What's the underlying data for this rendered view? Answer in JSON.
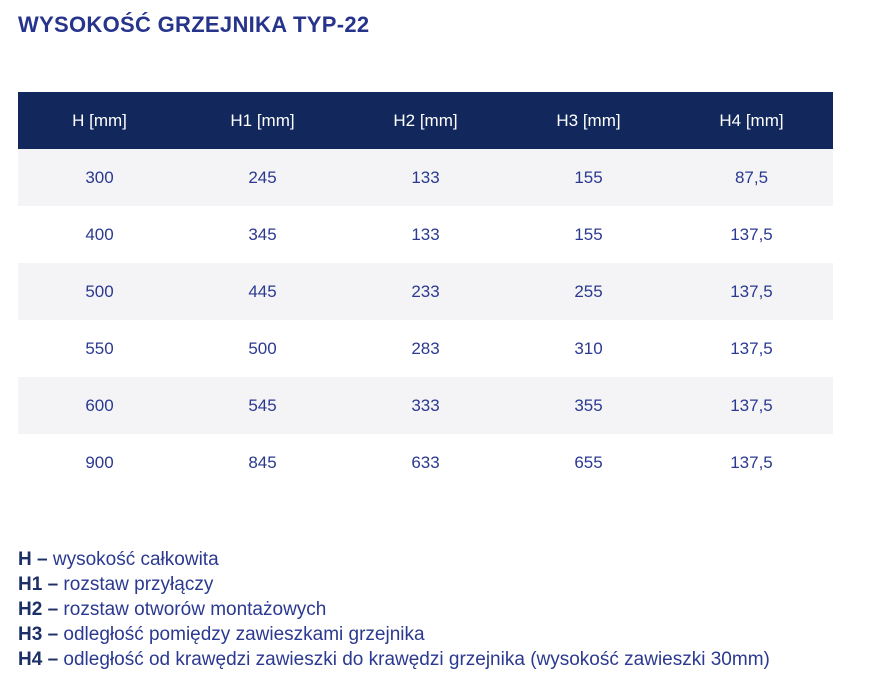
{
  "title": "WYSOKOŚĆ GRZEJNIKA TYP-22",
  "table": {
    "columns": [
      "H [mm]",
      "H1 [mm]",
      "H2 [mm]",
      "H3 [mm]",
      "H4 [mm]"
    ],
    "rows": [
      [
        "300",
        "245",
        "133",
        "155",
        "87,5"
      ],
      [
        "400",
        "345",
        "133",
        "155",
        "137,5"
      ],
      [
        "500",
        "445",
        "233",
        "255",
        "137,5"
      ],
      [
        "550",
        "500",
        "283",
        "310",
        "137,5"
      ],
      [
        "600",
        "545",
        "333",
        "355",
        "137,5"
      ],
      [
        "900",
        "845",
        "633",
        "655",
        "137,5"
      ]
    ]
  },
  "legend": [
    {
      "label": "H –",
      "text": "wysokość całkowita"
    },
    {
      "label": "H1 –",
      "text": "rozstaw przyłączy"
    },
    {
      "label": "H2 –",
      "text": "rozstaw otworów montażowych"
    },
    {
      "label": "H3 –",
      "text": "odległość pomiędzy zawieszkami grzejnika"
    },
    {
      "label": "H4 –",
      "text": "odległość od krawędzi zawieszki do krawędzi grzejnika (wysokość zawieszki 30mm)"
    }
  ],
  "theme": {
    "accent": "#2B3990",
    "title_color": "#27348B",
    "header_bg": "#12275B",
    "header_text": "#FFFFFF",
    "row_alt_bg": "#F4F4F6",
    "label_color": "#1C2F66"
  }
}
